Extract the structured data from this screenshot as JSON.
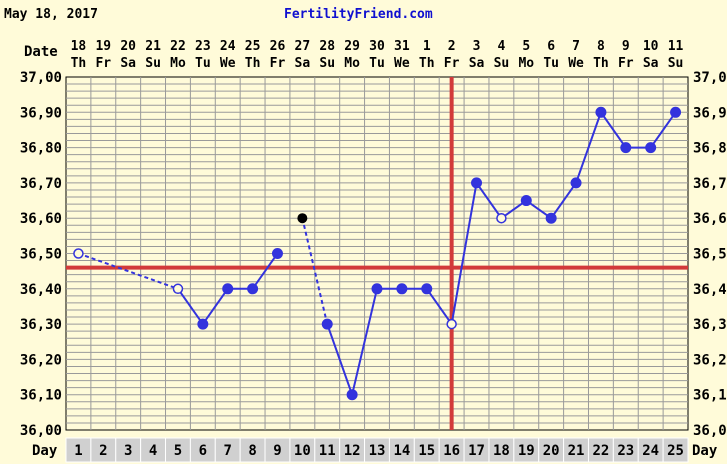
{
  "header": {
    "date_text": "May 18, 2017",
    "site": "FertilityFriend.com"
  },
  "labels": {
    "date_row": "Date",
    "day_row_left": "Day",
    "day_row_right": "Day"
  },
  "colors": {
    "background": "#fffbd9",
    "grid": "#9a9a9a",
    "plot_bg": "#fffbd9",
    "series": "#3333dd",
    "coverline": "#d23a3a",
    "ovulation_line": "#d23a3a",
    "day_cell": "#d0d0d0"
  },
  "chart_data": {
    "type": "line",
    "ylim": [
      36.0,
      37.0
    ],
    "y_ticks": [
      "37,00",
      "36,90",
      "36,80",
      "36,70",
      "36,60",
      "36,50",
      "36,40",
      "36,30",
      "36,20",
      "36,10",
      "36,00"
    ],
    "y_ticks_right": [
      "37,0",
      "36,9",
      "36,8",
      "36,7",
      "36,6",
      "36,5",
      "36,4",
      "36,3",
      "36,2",
      "36,1",
      "36,0"
    ],
    "dates": [
      "18",
      "19",
      "20",
      "21",
      "22",
      "23",
      "24",
      "25",
      "26",
      "27",
      "28",
      "29",
      "30",
      "31",
      "1",
      "2",
      "3",
      "4",
      "5",
      "6",
      "7",
      "8",
      "9",
      "10",
      "11"
    ],
    "weekdays": [
      "Th",
      "Fr",
      "Sa",
      "Su",
      "Mo",
      "Tu",
      "We",
      "Th",
      "Fr",
      "Sa",
      "Su",
      "Mo",
      "Tu",
      "We",
      "Th",
      "Fr",
      "Sa",
      "Su",
      "Mo",
      "Tu",
      "We",
      "Th",
      "Fr",
      "Sa",
      "Su"
    ],
    "cycle_days": [
      "1",
      "2",
      "3",
      "4",
      "5",
      "6",
      "7",
      "8",
      "9",
      "10",
      "11",
      "12",
      "13",
      "14",
      "15",
      "16",
      "17",
      "18",
      "19",
      "20",
      "21",
      "22",
      "23",
      "24",
      "25"
    ],
    "temperatures": [
      36.5,
      null,
      null,
      null,
      36.4,
      36.3,
      36.4,
      36.4,
      36.5,
      36.6,
      36.3,
      36.1,
      36.4,
      36.4,
      36.4,
      36.3,
      36.7,
      36.6,
      36.65,
      36.6,
      36.7,
      36.9,
      36.8,
      36.8,
      36.9
    ],
    "point_style": [
      "open",
      "none",
      "none",
      "none",
      "open",
      "filled",
      "filled",
      "filled",
      "filled",
      "black",
      "filled",
      "filled",
      "filled",
      "filled",
      "filled",
      "open",
      "filled",
      "open",
      "filled",
      "filled",
      "filled",
      "filled",
      "filled",
      "filled",
      "filled"
    ],
    "connected_to_previous": [
      false,
      false,
      false,
      false,
      "dashed",
      "solid",
      "solid",
      "solid",
      "solid",
      false,
      "dashed",
      "solid",
      "solid",
      "solid",
      "solid",
      "solid",
      "solid",
      "solid",
      "solid",
      "solid",
      "solid",
      "solid",
      "solid",
      "solid",
      "solid"
    ],
    "coverline": 36.46,
    "ovulation_day": 16,
    "grid": true
  }
}
